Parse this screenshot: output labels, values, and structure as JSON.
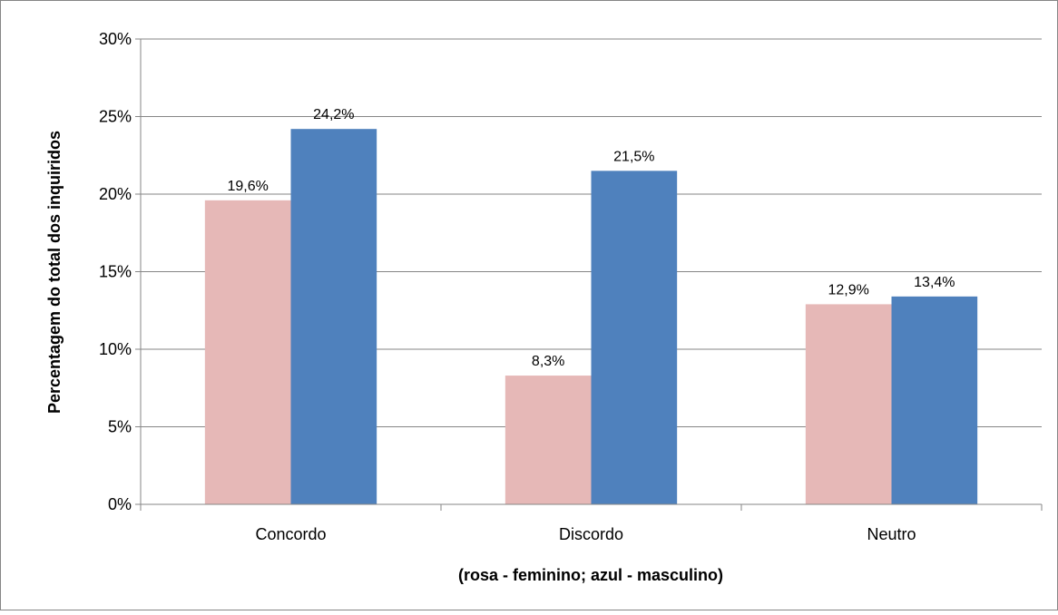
{
  "chart_data": {
    "type": "bar",
    "categories": [
      "Concordo",
      "Discordo",
      "Neutro"
    ],
    "series": [
      {
        "values": [
          19.6,
          8.3,
          12.9
        ],
        "color": "#E6B8B7"
      },
      {
        "values": [
          24.2,
          21.5,
          13.4
        ],
        "color": "#4F81BD"
      }
    ],
    "data_labels": [
      [
        "19,6%",
        "8,3%",
        "12,9%"
      ],
      [
        "24,2%",
        "21,5%",
        "13,4%"
      ]
    ],
    "ylabel": "Percentagem do total dos inquiridos",
    "xlabel": "(rosa - feminino; azul - masculino)",
    "yticks": [
      "0%",
      "5%",
      "10%",
      "15%",
      "20%",
      "25%",
      "30%"
    ],
    "ylim": [
      0,
      30
    ],
    "grid": true,
    "legend": "none"
  }
}
